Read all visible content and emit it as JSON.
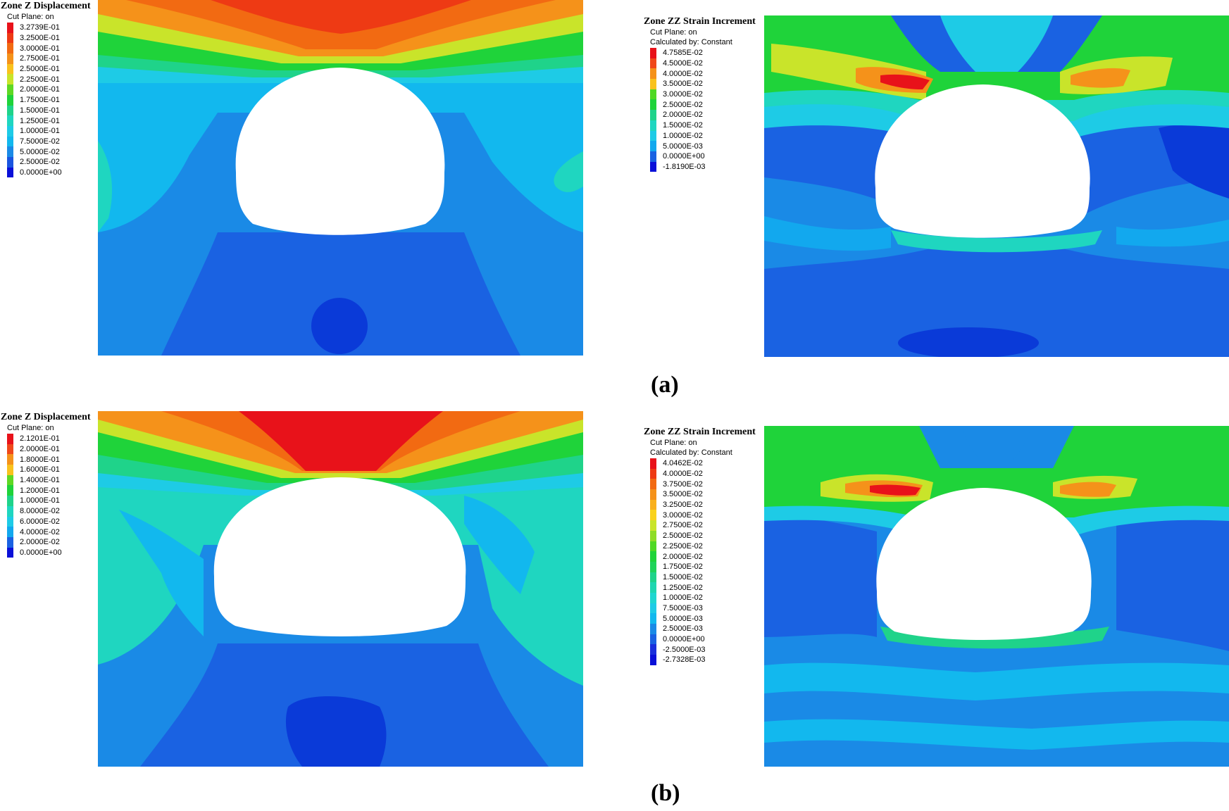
{
  "chart_data": [
    {
      "type": "heatmap",
      "panel": "a",
      "title": "Zone Z Displacement",
      "subtitles": [
        "Cut Plane: on"
      ],
      "legend_levels": [
        "3.2739E-01",
        "3.2500E-01",
        "3.0000E-01",
        "2.7500E-01",
        "2.5000E-01",
        "2.2500E-01",
        "2.0000E-01",
        "1.7500E-01",
        "1.5000E-01",
        "1.2500E-01",
        "1.0000E-01",
        "7.5000E-02",
        "5.0000E-02",
        "2.5000E-02",
        "0.0000E+00"
      ],
      "legend_colors": [
        "#e8121a",
        "#ee3a14",
        "#f26a12",
        "#f5921a",
        "#f9c21d",
        "#c9e42a",
        "#5fd824",
        "#1fd33a",
        "#1fd38a",
        "#1fd6c0",
        "#1ecbe6",
        "#12b8ee",
        "#1a8ae6",
        "#1a55e0",
        "#0a10d8"
      ],
      "value_range": [
        0,
        0.32739
      ]
    },
    {
      "type": "heatmap",
      "panel": "a",
      "title": "Zone ZZ Strain Increment",
      "subtitles": [
        "Cut Plane: on",
        "Calculated by: Constant"
      ],
      "legend_levels": [
        "4.7585E-02",
        "4.5000E-02",
        "4.0000E-02",
        "3.5000E-02",
        "3.0000E-02",
        "2.5000E-02",
        "2.0000E-02",
        "1.5000E-02",
        "1.0000E-02",
        "5.0000E-03",
        "0.0000E+00",
        "-1.8190E-03"
      ],
      "legend_colors": [
        "#e8121a",
        "#f0481a",
        "#f5921a",
        "#f9c21d",
        "#4fd824",
        "#1fd33a",
        "#1fd38a",
        "#1fd6c0",
        "#1ecbe6",
        "#12a8ee",
        "#1a62e2",
        "#0a10d8"
      ],
      "value_range": [
        -0.001819,
        0.047585
      ]
    },
    {
      "type": "heatmap",
      "panel": "b",
      "title": "Zone Z Displacement",
      "subtitles": [
        "Cut Plane: on"
      ],
      "legend_levels": [
        "2.1201E-01",
        "2.0000E-01",
        "1.8000E-01",
        "1.6000E-01",
        "1.4000E-01",
        "1.2000E-01",
        "1.0000E-01",
        "8.0000E-02",
        "6.0000E-02",
        "4.0000E-02",
        "2.0000E-02",
        "0.0000E+00"
      ],
      "legend_colors": [
        "#e8121a",
        "#f0481a",
        "#f5921a",
        "#f9c21d",
        "#5fd824",
        "#1fd33a",
        "#1fd38a",
        "#1fd6c0",
        "#1ecbe6",
        "#12a8ee",
        "#1a62e2",
        "#0a10d8"
      ],
      "value_range": [
        0,
        0.21201
      ]
    },
    {
      "type": "heatmap",
      "panel": "b",
      "title": "Zone ZZ Strain Increment",
      "subtitles": [
        "Cut Plane: on",
        "Calculated by: Constant"
      ],
      "legend_levels": [
        "4.0462E-02",
        "4.0000E-02",
        "3.7500E-02",
        "3.5000E-02",
        "3.2500E-02",
        "3.0000E-02",
        "2.7500E-02",
        "2.5000E-02",
        "2.2500E-02",
        "2.0000E-02",
        "1.7500E-02",
        "1.5000E-02",
        "1.2500E-02",
        "1.0000E-02",
        "7.5000E-03",
        "5.0000E-03",
        "2.5000E-03",
        "0.0000E+00",
        "-2.5000E-03",
        "-2.7328E-03"
      ],
      "legend_colors": [
        "#e8121a",
        "#ee3a14",
        "#f26a12",
        "#f5921a",
        "#f9b01d",
        "#f9d21d",
        "#c9e42a",
        "#8fdc26",
        "#4fd824",
        "#1fd33a",
        "#1fd35a",
        "#1fd38a",
        "#1fd6b0",
        "#1fd6d0",
        "#1ecbe6",
        "#12b8ee",
        "#1a8ae6",
        "#1a62e2",
        "#1a30dc",
        "#0a10d8"
      ],
      "value_range": [
        -0.0027328,
        0.040462
      ]
    }
  ],
  "panel_labels": {
    "a": "(a)",
    "b": "(b)"
  }
}
